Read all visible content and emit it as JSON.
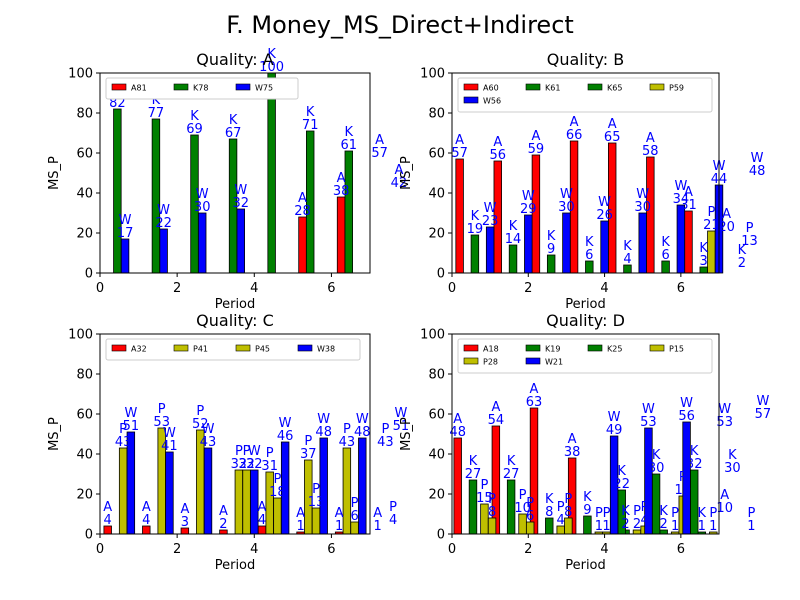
{
  "figure_title": "F. Money_MS_Direct+Indirect",
  "colors": {
    "A": "#ff0000",
    "K": "#008000",
    "P": "#bfbf00",
    "W": "#0000ff",
    "label": "#0000ff"
  },
  "chart_data": [
    {
      "type": "bar",
      "title": "Quality: A",
      "xlabel": "Period",
      "ylabel": "MS_P",
      "xlim": [
        0,
        7
      ],
      "ylim": [
        0,
        100
      ],
      "xticks": [
        "0",
        "2",
        "4",
        "6"
      ],
      "yticks": [
        "0",
        "20",
        "40",
        "60",
        "80",
        "100"
      ],
      "series": [
        {
          "name": "A81",
          "group": "A",
          "points": [
            {
              "x": 5.25,
              "y": 28,
              "label": "28"
            },
            {
              "x": 6.25,
              "y": 38,
              "label": "38"
            }
          ],
          "extra_labels": [
            {
              "x": 7.25,
              "y": 57,
              "label": "57"
            },
            {
              "x": 7.75,
              "y": 42,
              "label": "42"
            }
          ]
        },
        {
          "name": "K78",
          "group": "K",
          "points": [
            {
              "x": 0.45,
              "y": 82,
              "label": "82"
            },
            {
              "x": 1.45,
              "y": 77,
              "label": "77"
            },
            {
              "x": 2.45,
              "y": 69,
              "label": "69"
            },
            {
              "x": 3.45,
              "y": 67,
              "label": "67"
            },
            {
              "x": 4.45,
              "y": 100,
              "label": "100"
            },
            {
              "x": 5.45,
              "y": 71,
              "label": "71"
            },
            {
              "x": 6.45,
              "y": 61,
              "label": "61"
            }
          ]
        },
        {
          "name": "W75",
          "group": "W",
          "points": [
            {
              "x": 0.65,
              "y": 17,
              "label": "17"
            },
            {
              "x": 1.65,
              "y": 22,
              "label": "22"
            },
            {
              "x": 2.65,
              "y": 30,
              "label": "30"
            },
            {
              "x": 3.65,
              "y": 32,
              "label": "32"
            }
          ]
        }
      ]
    },
    {
      "type": "bar",
      "title": "Quality: B",
      "xlabel": "Period",
      "ylabel": "MS_P",
      "xlim": [
        0,
        7
      ],
      "ylim": [
        0,
        100
      ],
      "xticks": [
        "0",
        "2",
        "4",
        "6"
      ],
      "yticks": [
        "0",
        "20",
        "40",
        "60",
        "80",
        "100"
      ],
      "series": [
        {
          "name": "A60",
          "group": "A",
          "points": [
            {
              "x": 0.2,
              "y": 57,
              "label": "57"
            },
            {
              "x": 1.2,
              "y": 56,
              "label": "56"
            },
            {
              "x": 2.2,
              "y": 59,
              "label": "59"
            },
            {
              "x": 3.2,
              "y": 66,
              "label": "66"
            },
            {
              "x": 4.2,
              "y": 65,
              "label": "65"
            },
            {
              "x": 5.2,
              "y": 58,
              "label": "58"
            },
            {
              "x": 6.2,
              "y": 31,
              "label": "31"
            }
          ],
          "extra_labels": [
            {
              "x": 7.2,
              "y": 20,
              "label": "20"
            }
          ]
        },
        {
          "name": "K61",
          "group": "K",
          "points": [
            {
              "x": 0.6,
              "y": 19,
              "label": "19"
            },
            {
              "x": 1.6,
              "y": 14,
              "label": "14"
            },
            {
              "x": 2.6,
              "y": 9,
              "label": "9"
            },
            {
              "x": 3.6,
              "y": 6,
              "label": "6"
            },
            {
              "x": 4.6,
              "y": 4,
              "label": "4"
            },
            {
              "x": 5.6,
              "y": 6,
              "label": "6"
            },
            {
              "x": 6.6,
              "y": 3,
              "label": "3"
            }
          ],
          "extra_labels": [
            {
              "x": 7.6,
              "y": 2,
              "label": "2"
            }
          ]
        },
        {
          "name": "K65",
          "group": "K",
          "points": []
        },
        {
          "name": "P59",
          "group": "P",
          "points": [
            {
              "x": 6.8,
              "y": 21,
              "label": "21"
            }
          ],
          "extra_labels": [
            {
              "x": 7.8,
              "y": 13,
              "label": "13"
            }
          ]
        },
        {
          "name": "W56",
          "group": "W",
          "points": [
            {
              "x": 1.0,
              "y": 23,
              "label": "23"
            },
            {
              "x": 2.0,
              "y": 29,
              "label": "29"
            },
            {
              "x": 3.0,
              "y": 30,
              "label": "30"
            },
            {
              "x": 4.0,
              "y": 26,
              "label": "26"
            },
            {
              "x": 5.0,
              "y": 30,
              "label": "30"
            },
            {
              "x": 6.0,
              "y": 34,
              "label": "34"
            },
            {
              "x": 7.0,
              "y": 44,
              "label": "44"
            }
          ],
          "extra_labels": [
            {
              "x": 8.0,
              "y": 48,
              "label": "48"
            }
          ]
        }
      ]
    },
    {
      "type": "bar",
      "title": "Quality: C",
      "xlabel": "Period",
      "ylabel": "MS_P",
      "xlim": [
        0,
        7
      ],
      "ylim": [
        0,
        100
      ],
      "xticks": [
        "0",
        "2",
        "4",
        "6"
      ],
      "yticks": [
        "0",
        "20",
        "40",
        "60",
        "80",
        "100"
      ],
      "series": [
        {
          "name": "A32",
          "group": "A",
          "points": [
            {
              "x": 0.2,
              "y": 4,
              "label": "4"
            },
            {
              "x": 1.2,
              "y": 4,
              "label": "4"
            },
            {
              "x": 2.2,
              "y": 3,
              "label": "3"
            },
            {
              "x": 3.2,
              "y": 2,
              "label": "2"
            },
            {
              "x": 4.2,
              "y": 4,
              "label": "4"
            },
            {
              "x": 5.2,
              "y": 1,
              "label": "1"
            },
            {
              "x": 6.2,
              "y": 1,
              "label": "1"
            }
          ],
          "extra_labels": [
            {
              "x": 7.2,
              "y": 1,
              "label": "1"
            }
          ]
        },
        {
          "name": "P41",
          "group": "P",
          "points": [
            {
              "x": 0.6,
              "y": 43,
              "label": "43"
            },
            {
              "x": 1.6,
              "y": 53,
              "label": "53"
            },
            {
              "x": 2.6,
              "y": 52,
              "label": "52"
            },
            {
              "x": 3.6,
              "y": 32,
              "label": "32"
            },
            {
              "x": 4.4,
              "y": 31,
              "label": "31"
            },
            {
              "x": 5.4,
              "y": 37,
              "label": "37"
            },
            {
              "x": 6.4,
              "y": 43,
              "label": "43"
            }
          ],
          "extra_labels": [
            {
              "x": 7.4,
              "y": 43,
              "label": "43"
            }
          ]
        },
        {
          "name": "P45",
          "group": "P",
          "points": [
            {
              "x": 3.8,
              "y": 32,
              "label": "32"
            },
            {
              "x": 4.6,
              "y": 18,
              "label": "18"
            },
            {
              "x": 5.6,
              "y": 13,
              "label": "13"
            },
            {
              "x": 6.6,
              "y": 6,
              "label": "6"
            }
          ],
          "extra_labels": [
            {
              "x": 7.6,
              "y": 4,
              "label": "4"
            }
          ]
        },
        {
          "name": "W38",
          "group": "W",
          "points": [
            {
              "x": 0.8,
              "y": 51,
              "label": "51"
            },
            {
              "x": 1.8,
              "y": 41,
              "label": "41"
            },
            {
              "x": 2.8,
              "y": 43,
              "label": "43"
            },
            {
              "x": 4.0,
              "y": 32,
              "label": "32"
            },
            {
              "x": 4.8,
              "y": 46,
              "label": "46"
            },
            {
              "x": 5.8,
              "y": 48,
              "label": "48"
            },
            {
              "x": 6.8,
              "y": 48,
              "label": "48"
            }
          ],
          "extra_labels": [
            {
              "x": 7.8,
              "y": 51,
              "label": "51"
            }
          ]
        }
      ]
    },
    {
      "type": "bar",
      "title": "Quality: D",
      "xlabel": "Period",
      "ylabel": "MS_P",
      "xlim": [
        0,
        7
      ],
      "ylim": [
        0,
        100
      ],
      "xticks": [
        "0",
        "2",
        "4",
        "6"
      ],
      "yticks": [
        "0",
        "20",
        "40",
        "60",
        "80",
        "100"
      ],
      "series": [
        {
          "name": "A18",
          "group": "A",
          "points": [
            {
              "x": 0.15,
              "y": 48,
              "label": "48"
            },
            {
              "x": 1.15,
              "y": 54,
              "label": "54"
            },
            {
              "x": 2.15,
              "y": 63,
              "label": "63"
            },
            {
              "x": 3.15,
              "y": 38,
              "label": "38"
            }
          ],
          "extra_labels": [
            {
              "x": 7.15,
              "y": 10,
              "label": "10"
            }
          ]
        },
        {
          "name": "K19",
          "group": "K",
          "points": [
            {
              "x": 0.55,
              "y": 27,
              "label": "27"
            },
            {
              "x": 1.55,
              "y": 27,
              "label": "27"
            },
            {
              "x": 2.55,
              "y": 8,
              "label": "8"
            },
            {
              "x": 3.55,
              "y": 9,
              "label": "9"
            },
            {
              "x": 4.55,
              "y": 2,
              "label": "2"
            },
            {
              "x": 5.55,
              "y": 2,
              "label": "2"
            },
            {
              "x": 6.55,
              "y": 1,
              "label": "1"
            }
          ]
        },
        {
          "name": "K25",
          "group": "K",
          "points": [
            {
              "x": 4.45,
              "y": 22,
              "label": "22"
            },
            {
              "x": 5.35,
              "y": 30,
              "label": "30"
            },
            {
              "x": 6.35,
              "y": 32,
              "label": "32"
            }
          ],
          "extra_labels": [
            {
              "x": 7.35,
              "y": 30,
              "label": "30"
            }
          ]
        },
        {
          "name": "P15",
          "group": "P",
          "points": [
            {
              "x": 0.85,
              "y": 15,
              "label": "15"
            },
            {
              "x": 1.85,
              "y": 10,
              "label": "10"
            },
            {
              "x": 2.85,
              "y": 4,
              "label": "4"
            },
            {
              "x": 3.85,
              "y": 1,
              "label": "1"
            },
            {
              "x": 4.85,
              "y": 2,
              "label": "2"
            },
            {
              "x": 5.85,
              "y": 1,
              "label": "1"
            },
            {
              "x": 6.85,
              "y": 1,
              "label": "1"
            }
          ],
          "extra_labels": [
            {
              "x": 7.85,
              "y": 1,
              "label": "1"
            }
          ]
        },
        {
          "name": "P28",
          "group": "P",
          "points": [
            {
              "x": 1.05,
              "y": 8,
              "label": "8"
            },
            {
              "x": 2.05,
              "y": 6,
              "label": "6"
            },
            {
              "x": 3.05,
              "y": 8,
              "label": "8"
            },
            {
              "x": 4.05,
              "y": 1,
              "label": "1"
            },
            {
              "x": 5.05,
              "y": 4,
              "label": "4"
            },
            {
              "x": 6.05,
              "y": 19,
              "label": "19"
            }
          ]
        },
        {
          "name": "W21",
          "group": "W",
          "points": [
            {
              "x": 4.25,
              "y": 49,
              "label": "49"
            },
            {
              "x": 5.15,
              "y": 53,
              "label": "53"
            },
            {
              "x": 6.15,
              "y": 56,
              "label": "56"
            }
          ],
          "extra_labels": [
            {
              "x": 7.15,
              "y": 53,
              "label": "53"
            },
            {
              "x": 8.15,
              "y": 57,
              "label": "57"
            }
          ]
        }
      ]
    }
  ]
}
